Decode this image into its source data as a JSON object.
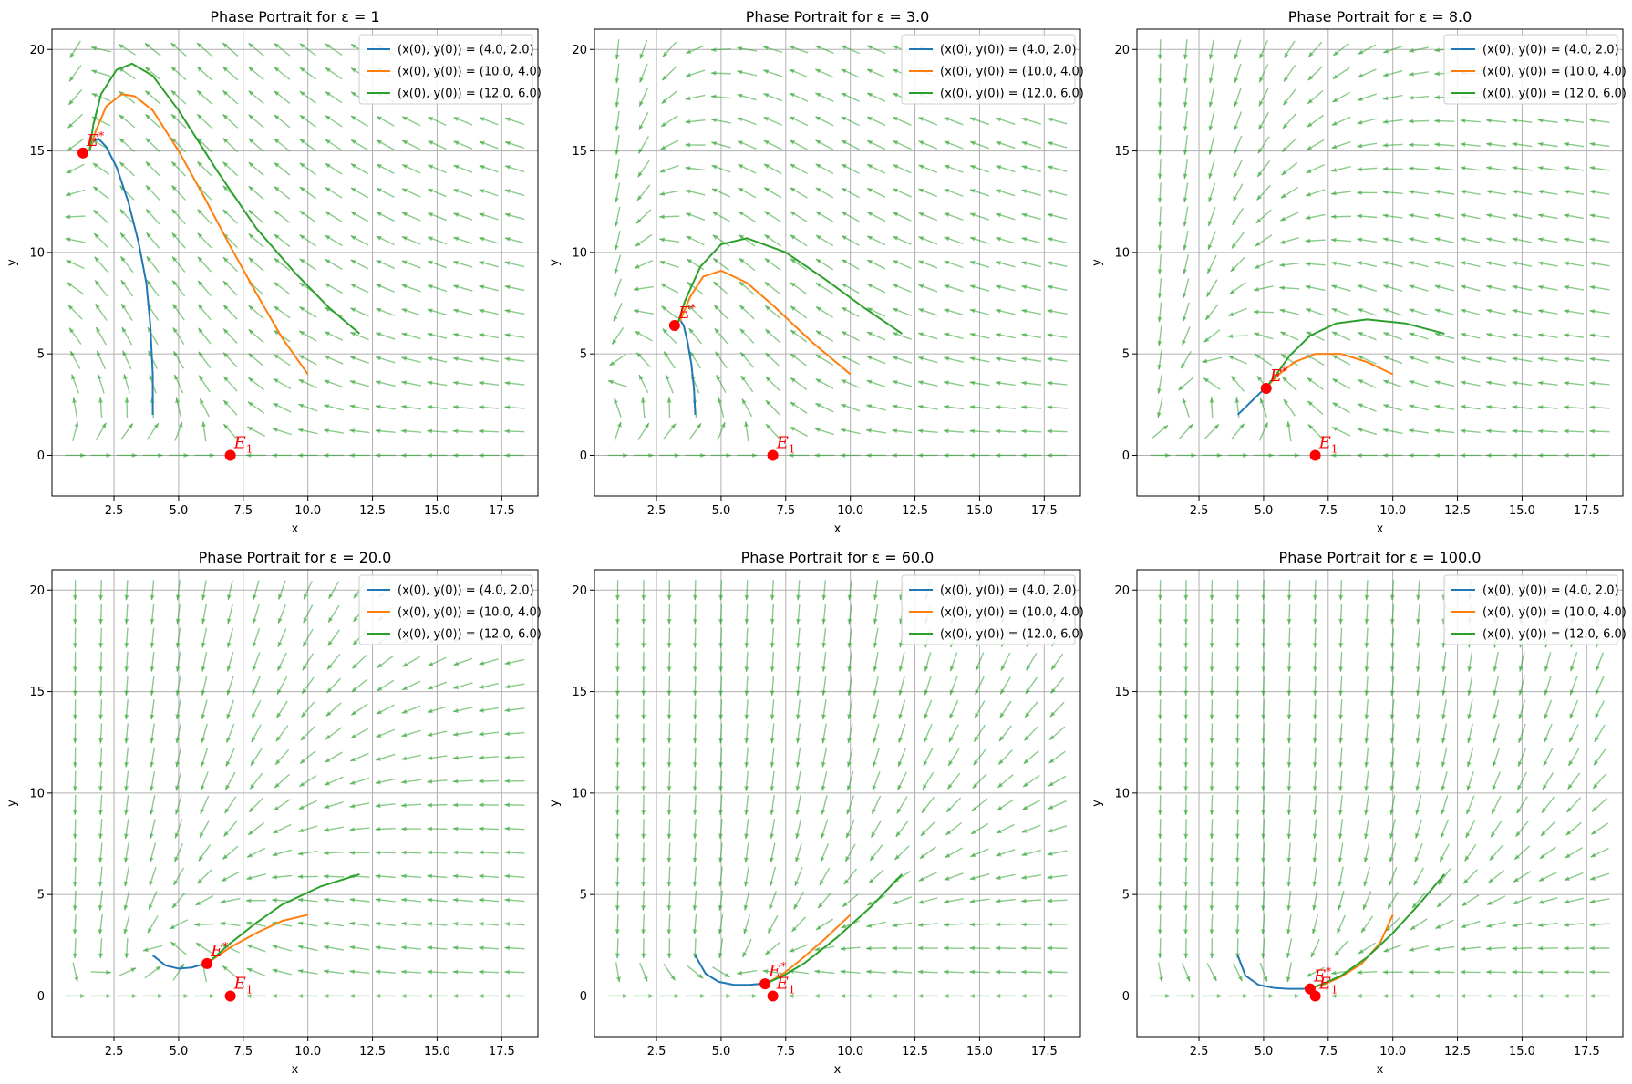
{
  "chart_data": [
    {
      "type": "line",
      "title": "Phase Portrait for ε = 1",
      "epsilon": 1,
      "xlabel": "x",
      "ylabel": "y",
      "xlim": [
        0.1,
        18.9
      ],
      "ylim": [
        -2,
        21
      ],
      "xticks": [
        2.5,
        5.0,
        7.5,
        10.0,
        12.5,
        15.0,
        17.5
      ],
      "xtick_labels": [
        "2.5",
        "5.0",
        "7.5",
        "10.0",
        "12.5",
        "15.0",
        "17.5"
      ],
      "yticks": [
        0,
        5,
        10,
        15,
        20
      ],
      "ytick_labels": [
        "0",
        "5",
        "10",
        "15",
        "20"
      ],
      "grid": true,
      "legend_position": "top-right",
      "series": [
        {
          "name": "(x(0), y(0)) = (4.0, 2.0)",
          "color": "#1f77b4",
          "x": [
            4.0,
            4.0,
            3.9,
            3.75,
            3.45,
            3.05,
            2.6,
            2.2,
            1.9,
            1.7,
            1.6,
            1.55
          ],
          "y": [
            2.0,
            4.0,
            6.5,
            8.5,
            10.5,
            12.5,
            14.2,
            15.2,
            15.6,
            15.5,
            15.2,
            15.0
          ]
        },
        {
          "name": "(x(0), y(0)) = (10.0, 4.0)",
          "color": "#ff7f0e",
          "x": [
            10.0,
            9.0,
            8.0,
            7.0,
            6.0,
            5.0,
            4.0,
            3.3,
            2.8,
            2.2,
            1.8,
            1.55
          ],
          "y": [
            4.0,
            5.8,
            8.0,
            10.3,
            12.7,
            15.0,
            17.0,
            17.7,
            17.8,
            17.2,
            16.0,
            15.0
          ]
        },
        {
          "name": "(x(0), y(0)) = (12.0, 6.0)",
          "color": "#2ca02c",
          "x": [
            12.0,
            10.8,
            9.5,
            8.0,
            6.5,
            5.0,
            4.0,
            3.2,
            2.6,
            2.0,
            1.7,
            1.55
          ],
          "y": [
            6.0,
            7.3,
            9.0,
            11.2,
            14.0,
            17.0,
            18.7,
            19.3,
            19.0,
            17.8,
            16.3,
            15.0
          ]
        }
      ],
      "equilibria": [
        {
          "label": "E",
          "sup": "*",
          "x": 1.3,
          "y": 14.9,
          "color": "#ff0000"
        },
        {
          "label": "E",
          "sub": "1",
          "x": 7.0,
          "y": 0.0,
          "color": "#ff0000"
        }
      ]
    },
    {
      "type": "line",
      "title": "Phase Portrait for ε = 3.0",
      "epsilon": 3.0,
      "xlabel": "x",
      "ylabel": "y",
      "xlim": [
        0.1,
        18.9
      ],
      "ylim": [
        -2,
        21
      ],
      "xticks": [
        2.5,
        5.0,
        7.5,
        10.0,
        12.5,
        15.0,
        17.5
      ],
      "xtick_labels": [
        "2.5",
        "5.0",
        "7.5",
        "10.0",
        "12.5",
        "15.0",
        "17.5"
      ],
      "yticks": [
        0,
        5,
        10,
        15,
        20
      ],
      "ytick_labels": [
        "0",
        "5",
        "10",
        "15",
        "20"
      ],
      "grid": true,
      "legend_position": "top-right",
      "series": [
        {
          "name": "(x(0), y(0)) = (4.0, 2.0)",
          "color": "#1f77b4",
          "x": [
            4.0,
            3.95,
            3.85,
            3.7,
            3.55,
            3.4,
            3.3
          ],
          "y": [
            2.0,
            3.3,
            4.5,
            5.6,
            6.4,
            6.7,
            6.5
          ]
        },
        {
          "name": "(x(0), y(0)) = (10.0, 4.0)",
          "color": "#ff7f0e",
          "x": [
            10.0,
            8.5,
            7.0,
            6.0,
            5.0,
            4.3,
            3.8,
            3.4
          ],
          "y": [
            4.0,
            5.6,
            7.4,
            8.5,
            9.1,
            8.8,
            7.8,
            6.6
          ]
        },
        {
          "name": "(x(0), y(0)) = (12.0, 6.0)",
          "color": "#2ca02c",
          "x": [
            12.0,
            10.5,
            9.0,
            7.5,
            6.0,
            5.0,
            4.2,
            3.6,
            3.35
          ],
          "y": [
            6.0,
            7.3,
            8.7,
            10.0,
            10.7,
            10.4,
            9.3,
            7.6,
            6.6
          ]
        }
      ],
      "equilibria": [
        {
          "label": "E",
          "sup": "*",
          "x": 3.2,
          "y": 6.4,
          "color": "#ff0000"
        },
        {
          "label": "E",
          "sub": "1",
          "x": 7.0,
          "y": 0.0,
          "color": "#ff0000"
        }
      ]
    },
    {
      "type": "line",
      "title": "Phase Portrait for ε = 8.0",
      "epsilon": 8.0,
      "xlabel": "x",
      "ylabel": "y",
      "xlim": [
        0.1,
        18.9
      ],
      "ylim": [
        -2,
        21
      ],
      "xticks": [
        2.5,
        5.0,
        7.5,
        10.0,
        12.5,
        15.0,
        17.5
      ],
      "xtick_labels": [
        "2.5",
        "5.0",
        "7.5",
        "10.0",
        "12.5",
        "15.0",
        "17.5"
      ],
      "yticks": [
        0,
        5,
        10,
        15,
        20
      ],
      "ytick_labels": [
        "0",
        "5",
        "10",
        "15",
        "20"
      ],
      "grid": true,
      "legend_position": "top-right",
      "series": [
        {
          "name": "(x(0), y(0)) = (4.0, 2.0)",
          "color": "#1f77b4",
          "x": [
            4.0,
            4.4,
            4.8,
            5.1
          ],
          "y": [
            2.0,
            2.5,
            3.0,
            3.35
          ]
        },
        {
          "name": "(x(0), y(0)) = (10.0, 4.0)",
          "color": "#ff7f0e",
          "x": [
            10.0,
            9.0,
            8.0,
            7.0,
            6.2,
            5.6,
            5.1
          ],
          "y": [
            4.0,
            4.6,
            5.0,
            5.0,
            4.6,
            4.0,
            3.35
          ]
        },
        {
          "name": "(x(0), y(0)) = (12.0, 6.0)",
          "color": "#2ca02c",
          "x": [
            12.0,
            10.5,
            9.0,
            7.8,
            6.8,
            6.0,
            5.5,
            5.1
          ],
          "y": [
            6.0,
            6.5,
            6.7,
            6.5,
            5.9,
            4.9,
            4.0,
            3.35
          ]
        }
      ],
      "equilibria": [
        {
          "label": "E",
          "sup": "*",
          "x": 5.1,
          "y": 3.3,
          "color": "#ff0000"
        },
        {
          "label": "E",
          "sub": "1",
          "x": 7.0,
          "y": 0.0,
          "color": "#ff0000"
        }
      ]
    },
    {
      "type": "line",
      "title": "Phase Portrait for ε = 20.0",
      "epsilon": 20.0,
      "xlabel": "x",
      "ylabel": "y",
      "xlim": [
        0.1,
        18.9
      ],
      "ylim": [
        -2,
        21
      ],
      "xticks": [
        2.5,
        5.0,
        7.5,
        10.0,
        12.5,
        15.0,
        17.5
      ],
      "xtick_labels": [
        "2.5",
        "5.0",
        "7.5",
        "10.0",
        "12.5",
        "15.0",
        "17.5"
      ],
      "yticks": [
        0,
        5,
        10,
        15,
        20
      ],
      "ytick_labels": [
        "0",
        "5",
        "10",
        "15",
        "20"
      ],
      "grid": true,
      "legend_position": "top-right",
      "series": [
        {
          "name": "(x(0), y(0)) = (4.0, 2.0)",
          "color": "#1f77b4",
          "x": [
            4.0,
            4.5,
            5.0,
            5.5,
            5.9,
            6.2
          ],
          "y": [
            2.0,
            1.5,
            1.35,
            1.4,
            1.55,
            1.7
          ]
        },
        {
          "name": "(x(0), y(0)) = (10.0, 4.0)",
          "color": "#ff7f0e",
          "x": [
            10.0,
            9.0,
            8.0,
            7.0,
            6.2
          ],
          "y": [
            4.0,
            3.7,
            3.1,
            2.4,
            1.7
          ]
        },
        {
          "name": "(x(0), y(0)) = (12.0, 6.0)",
          "color": "#2ca02c",
          "x": [
            12.0,
            10.5,
            9.0,
            8.0,
            7.0,
            6.2
          ],
          "y": [
            6.0,
            5.4,
            4.5,
            3.6,
            2.6,
            1.7
          ]
        }
      ],
      "equilibria": [
        {
          "label": "E",
          "sup": "*",
          "x": 6.1,
          "y": 1.6,
          "color": "#ff0000"
        },
        {
          "label": "E",
          "sub": "1",
          "x": 7.0,
          "y": 0.0,
          "color": "#ff0000"
        }
      ]
    },
    {
      "type": "line",
      "title": "Phase Portrait for ε = 60.0",
      "epsilon": 60.0,
      "xlabel": "x",
      "ylabel": "y",
      "xlim": [
        0.1,
        18.9
      ],
      "ylim": [
        -2,
        21
      ],
      "xticks": [
        2.5,
        5.0,
        7.5,
        10.0,
        12.5,
        15.0,
        17.5
      ],
      "xtick_labels": [
        "2.5",
        "5.0",
        "7.5",
        "10.0",
        "12.5",
        "15.0",
        "17.5"
      ],
      "yticks": [
        0,
        5,
        10,
        15,
        20
      ],
      "ytick_labels": [
        "0",
        "5",
        "10",
        "15",
        "20"
      ],
      "grid": true,
      "legend_position": "top-right",
      "series": [
        {
          "name": "(x(0), y(0)) = (4.0, 2.0)",
          "color": "#1f77b4",
          "x": [
            4.0,
            4.4,
            4.9,
            5.5,
            6.1,
            6.5,
            6.8
          ],
          "y": [
            2.0,
            1.1,
            0.7,
            0.55,
            0.55,
            0.6,
            0.65
          ]
        },
        {
          "name": "(x(0), y(0)) = (10.0, 4.0)",
          "color": "#ff7f0e",
          "x": [
            10.0,
            9.0,
            8.0,
            7.4,
            6.8
          ],
          "y": [
            4.0,
            2.8,
            1.7,
            1.1,
            0.65
          ]
        },
        {
          "name": "(x(0), y(0)) = (12.0, 6.0)",
          "color": "#2ca02c",
          "x": [
            12.0,
            10.8,
            9.5,
            8.2,
            7.4,
            6.8
          ],
          "y": [
            6.0,
            4.4,
            2.9,
            1.6,
            1.0,
            0.65
          ]
        }
      ],
      "equilibria": [
        {
          "label": "E",
          "sup": "*",
          "x": 6.7,
          "y": 0.6,
          "color": "#ff0000"
        },
        {
          "label": "E",
          "sub": "1",
          "x": 7.0,
          "y": 0.0,
          "color": "#ff0000"
        }
      ]
    },
    {
      "type": "line",
      "title": "Phase Portrait for ε = 100.0",
      "epsilon": 100.0,
      "xlabel": "x",
      "ylabel": "y",
      "xlim": [
        0.1,
        18.9
      ],
      "ylim": [
        -2,
        21
      ],
      "xticks": [
        2.5,
        5.0,
        7.5,
        10.0,
        12.5,
        15.0,
        17.5
      ],
      "xtick_labels": [
        "2.5",
        "5.0",
        "7.5",
        "10.0",
        "12.5",
        "15.0",
        "17.5"
      ],
      "yticks": [
        0,
        5,
        10,
        15,
        20
      ],
      "ytick_labels": [
        "0",
        "5",
        "10",
        "15",
        "20"
      ],
      "grid": true,
      "legend_position": "top-right",
      "series": [
        {
          "name": "(x(0), y(0)) = (4.0, 2.0)",
          "color": "#1f77b4",
          "x": [
            4.0,
            4.3,
            4.8,
            5.4,
            6.0,
            6.5,
            6.85
          ],
          "y": [
            2.0,
            1.0,
            0.55,
            0.4,
            0.35,
            0.35,
            0.4
          ]
        },
        {
          "name": "(x(0), y(0)) = (10.0, 4.0)",
          "color": "#ff7f0e",
          "x": [
            10.0,
            9.5,
            8.8,
            8.0,
            7.4,
            6.85
          ],
          "y": [
            4.0,
            2.6,
            1.6,
            0.95,
            0.6,
            0.4
          ]
        },
        {
          "name": "(x(0), y(0)) = (12.0, 6.0)",
          "color": "#2ca02c",
          "x": [
            12.0,
            11.0,
            10.0,
            9.0,
            8.0,
            7.3,
            6.85
          ],
          "y": [
            6.0,
            4.5,
            3.1,
            1.9,
            1.0,
            0.6,
            0.4
          ]
        }
      ],
      "equilibria": [
        {
          "label": "E",
          "sup": "*",
          "x": 6.8,
          "y": 0.35,
          "color": "#ff0000"
        },
        {
          "label": "E",
          "sub": "1",
          "x": 7.0,
          "y": 0.0,
          "color": "#ff0000"
        }
      ]
    }
  ],
  "colors": {
    "quiver": "#2ca02c",
    "grid": "#b0b0b0",
    "equilibrium": "#ff0000"
  }
}
